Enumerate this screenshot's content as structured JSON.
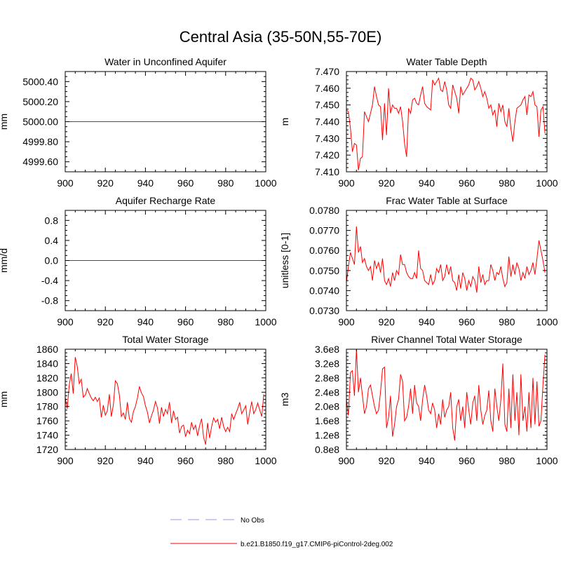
{
  "title": "Central Asia (35-50N,55-70E)",
  "legend": [
    {
      "label": "No Obs",
      "color": "#9999e6",
      "style": "dashed"
    },
    {
      "label": "b.e21.B1850.f19_g17.CMIP6-piControl-2deg.002",
      "color": "#ff0000",
      "style": "solid"
    }
  ],
  "chart_data": [
    {
      "type": "line",
      "title": "Water in Unconfined Aquifer",
      "ylabel": "mm",
      "xlim": [
        900,
        1000
      ],
      "ylim": [
        4999.5,
        5000.5
      ],
      "xticks": [
        900,
        920,
        940,
        960,
        980,
        1000
      ],
      "yticks": [
        4999.6,
        4999.8,
        5000.0,
        5000.2,
        5000.4
      ],
      "yticklabels": [
        "4999.60",
        "4999.80",
        "5000.00",
        "5000.20",
        "5000.40"
      ],
      "x_start": 900,
      "x_step": 1,
      "series": [
        {
          "color": "#ff0000",
          "values": [
            5000,
            5000,
            5000,
            5000,
            5000,
            5000,
            5000,
            5000,
            5000,
            5000,
            5000,
            5000,
            5000,
            5000,
            5000,
            5000,
            5000,
            5000,
            5000,
            5000,
            5000,
            5000,
            5000,
            5000,
            5000,
            5000,
            5000,
            5000,
            5000,
            5000,
            5000,
            5000,
            5000,
            5000,
            5000,
            5000,
            5000,
            5000,
            5000,
            5000,
            5000,
            5000,
            5000,
            5000,
            5000,
            5000,
            5000,
            5000,
            5000,
            5000,
            5000,
            5000,
            5000,
            5000,
            5000,
            5000,
            5000,
            5000,
            5000,
            5000,
            5000,
            5000,
            5000,
            5000,
            5000,
            5000,
            5000,
            5000,
            5000,
            5000,
            5000,
            5000,
            5000,
            5000,
            5000,
            5000,
            5000,
            5000,
            5000,
            5000,
            5000,
            5000,
            5000,
            5000,
            5000,
            5000,
            5000,
            5000,
            5000,
            5000,
            5000,
            5000,
            5000,
            5000,
            5000,
            5000,
            5000,
            5000,
            5000,
            5000
          ]
        }
      ]
    },
    {
      "type": "line",
      "title": "Water Table Depth",
      "ylabel": "m",
      "xlim": [
        900,
        1000
      ],
      "ylim": [
        7.41,
        7.47
      ],
      "xticks": [
        900,
        920,
        940,
        960,
        980,
        1000
      ],
      "yticks": [
        7.41,
        7.42,
        7.43,
        7.44,
        7.45,
        7.46,
        7.47
      ],
      "yticklabels": [
        "7.410",
        "7.420",
        "7.430",
        "7.440",
        "7.450",
        "7.460",
        "7.470"
      ],
      "x_start": 900,
      "x_step": 1,
      "series": [
        {
          "color": "#ff0000",
          "values": [
            7.447,
            7.446,
            7.436,
            7.422,
            7.427,
            7.426,
            7.411,
            7.418,
            7.419,
            7.446,
            7.443,
            7.44,
            7.445,
            7.45,
            7.461,
            7.455,
            7.45,
            7.449,
            7.429,
            7.451,
            7.432,
            7.46,
            7.445,
            7.45,
            7.448,
            7.448,
            7.445,
            7.449,
            7.44,
            7.427,
            7.419,
            7.448,
            7.445,
            7.453,
            7.454,
            7.451,
            7.45,
            7.456,
            7.461,
            7.451,
            7.449,
            7.448,
            7.447,
            7.465,
            7.462,
            7.464,
            7.466,
            7.459,
            7.458,
            7.464,
            7.459,
            7.45,
            7.448,
            7.462,
            7.458,
            7.454,
            7.445,
            7.461,
            7.456,
            7.458,
            7.46,
            7.462,
            7.466,
            7.465,
            7.459,
            7.461,
            7.464,
            7.46,
            7.455,
            7.458,
            7.454,
            7.448,
            7.45,
            7.444,
            7.447,
            7.437,
            7.451,
            7.446,
            7.45,
            7.44,
            7.437,
            7.448,
            7.436,
            7.428,
            7.44,
            7.448,
            7.449,
            7.45,
            7.453,
            7.455,
            7.444,
            7.456,
            7.455,
            7.458,
            7.45,
            7.449,
            7.431,
            7.447,
            7.449,
            7.433
          ]
        }
      ]
    },
    {
      "type": "line",
      "title": "Aquifer Recharge Rate",
      "ylabel": "mm/d",
      "xlim": [
        900,
        1000
      ],
      "ylim": [
        -1.0,
        1.0
      ],
      "xticks": [
        900,
        920,
        940,
        960,
        980,
        1000
      ],
      "yticks": [
        -0.8,
        -0.4,
        0.0,
        0.4,
        0.8
      ],
      "yticklabels": [
        "-0.8",
        "-0.4",
        "0.0",
        "0.4",
        "0.8"
      ],
      "x_start": 900,
      "x_step": 1,
      "series": [
        {
          "color": "#ff0000",
          "values": [
            0,
            0,
            0,
            0,
            0,
            0,
            0,
            0,
            0,
            0,
            0,
            0,
            0,
            0,
            0,
            0,
            0,
            0,
            0,
            0,
            0,
            0,
            0,
            0,
            0,
            0,
            0,
            0,
            0,
            0,
            0,
            0,
            0,
            0,
            0,
            0,
            0,
            0,
            0,
            0,
            0,
            0,
            0,
            0,
            0,
            0,
            0,
            0,
            0,
            0,
            0,
            0,
            0,
            0,
            0,
            0,
            0,
            0,
            0,
            0,
            0,
            0,
            0,
            0,
            0,
            0,
            0,
            0,
            0,
            0,
            0,
            0,
            0,
            0,
            0,
            0,
            0,
            0,
            0,
            0,
            0,
            0,
            0,
            0,
            0,
            0,
            0,
            0,
            0,
            0,
            0,
            0,
            0,
            0,
            0,
            0,
            0,
            0,
            0,
            0
          ]
        }
      ]
    },
    {
      "type": "line",
      "title": "Frac Water Table at Surface",
      "ylabel": "unitless [0-1]",
      "xlim": [
        900,
        1000
      ],
      "ylim": [
        0.073,
        0.078
      ],
      "xticks": [
        900,
        920,
        940,
        960,
        980,
        1000
      ],
      "yticks": [
        0.073,
        0.074,
        0.075,
        0.076,
        0.077,
        0.078
      ],
      "yticklabels": [
        "0.0730",
        "0.0740",
        "0.0750",
        "0.0760",
        "0.0770",
        "0.0780"
      ],
      "x_start": 900,
      "x_step": 1,
      "series": [
        {
          "color": "#ff0000",
          "values": [
            0.0744,
            0.0752,
            0.0759,
            0.0756,
            0.0753,
            0.0772,
            0.0759,
            0.0762,
            0.0754,
            0.0756,
            0.0752,
            0.075,
            0.0752,
            0.0745,
            0.0755,
            0.0751,
            0.0754,
            0.0749,
            0.0756,
            0.0745,
            0.0743,
            0.0746,
            0.0742,
            0.0749,
            0.0745,
            0.075,
            0.0748,
            0.0758,
            0.0753,
            0.0753,
            0.0749,
            0.0747,
            0.0746,
            0.0746,
            0.0749,
            0.0746,
            0.076,
            0.0751,
            0.075,
            0.0745,
            0.0744,
            0.0743,
            0.0748,
            0.0743,
            0.0745,
            0.0751,
            0.0749,
            0.0753,
            0.0745,
            0.0747,
            0.0753,
            0.0748,
            0.0752,
            0.0745,
            0.0744,
            0.074,
            0.0748,
            0.0741,
            0.0749,
            0.0746,
            0.074,
            0.0745,
            0.0742,
            0.0747,
            0.0745,
            0.0739,
            0.0752,
            0.0744,
            0.0748,
            0.0743,
            0.0745,
            0.0745,
            0.0753,
            0.075,
            0.0745,
            0.0749,
            0.0748,
            0.0752,
            0.0746,
            0.0742,
            0.0744,
            0.0757,
            0.0747,
            0.0753,
            0.0748,
            0.0754,
            0.0751,
            0.0745,
            0.0749,
            0.0746,
            0.0752,
            0.0748,
            0.075,
            0.0754,
            0.0748,
            0.0756,
            0.0765,
            0.076,
            0.0755,
            0.0749
          ]
        }
      ]
    },
    {
      "type": "line",
      "title": "Total Water Storage",
      "ylabel": "mm",
      "xlim": [
        900,
        1000
      ],
      "ylim": [
        1720,
        1860
      ],
      "xticks": [
        900,
        920,
        940,
        960,
        980,
        1000
      ],
      "yticks": [
        1720,
        1740,
        1760,
        1780,
        1800,
        1820,
        1840,
        1860
      ],
      "yticklabels": [
        "1720",
        "1740",
        "1760",
        "1780",
        "1800",
        "1820",
        "1840",
        "1860"
      ],
      "x_start": 900,
      "x_step": 1,
      "series": [
        {
          "color": "#ff0000",
          "values": [
            1793,
            1777,
            1810,
            1826,
            1798,
            1849,
            1836,
            1812,
            1818,
            1793,
            1796,
            1805,
            1798,
            1792,
            1788,
            1793,
            1787,
            1792,
            1765,
            1782,
            1768,
            1774,
            1797,
            1766,
            1782,
            1816,
            1812,
            1796,
            1766,
            1771,
            1762,
            1786,
            1763,
            1758,
            1773,
            1780,
            1792,
            1808,
            1799,
            1794,
            1781,
            1772,
            1757,
            1767,
            1775,
            1787,
            1778,
            1756,
            1779,
            1766,
            1776,
            1770,
            1786,
            1757,
            1774,
            1762,
            1765,
            1743,
            1752,
            1754,
            1738,
            1747,
            1742,
            1758,
            1748,
            1754,
            1739,
            1753,
            1763,
            1737,
            1727,
            1757,
            1736,
            1752,
            1764,
            1758,
            1762,
            1749,
            1765,
            1752,
            1745,
            1751,
            1745,
            1770,
            1762,
            1770,
            1777,
            1786,
            1770,
            1775,
            1781,
            1755,
            1772,
            1787,
            1770,
            1776,
            1785,
            1775,
            1766,
            1797
          ]
        }
      ]
    },
    {
      "type": "line",
      "title": "River Channel Total Water Storage",
      "ylabel": "m3",
      "xlim": [
        900,
        1000
      ],
      "ylim": [
        80000000.0,
        360000000.0
      ],
      "xticks": [
        900,
        920,
        940,
        960,
        980,
        1000
      ],
      "yticks": [
        80000000.0,
        120000000.0,
        160000000.0,
        200000000.0,
        240000000.0,
        280000000.0,
        320000000.0,
        360000000.0
      ],
      "yticklabels": [
        "0.8e8",
        "1.2e8",
        "1.6e8",
        "2.0e8",
        "2.4e8",
        "2.8e8",
        "3.2e8",
        "3.6e8"
      ],
      "x_start": 900,
      "x_step": 1,
      "series": [
        {
          "color": "#ff0000",
          "values": [
            220000000.0,
            175000000.0,
            295000000.0,
            300000000.0,
            230000000.0,
            360000000.0,
            240000000.0,
            280000000.0,
            230000000.0,
            180000000.0,
            200000000.0,
            250000000.0,
            260000000.0,
            230000000.0,
            200000000.0,
            180000000.0,
            190000000.0,
            240000000.0,
            305000000.0,
            310000000.0,
            140000000.0,
            170000000.0,
            230000000.0,
            116000000.0,
            150000000.0,
            200000000.0,
            220000000.0,
            290000000.0,
            270000000.0,
            160000000.0,
            170000000.0,
            200000000.0,
            250000000.0,
            180000000.0,
            260000000.0,
            210000000.0,
            200000000.0,
            160000000.0,
            220000000.0,
            260000000.0,
            230000000.0,
            190000000.0,
            180000000.0,
            210000000.0,
            190000000.0,
            140000000.0,
            180000000.0,
            150000000.0,
            220000000.0,
            170000000.0,
            190000000.0,
            200000000.0,
            240000000.0,
            140000000.0,
            105000000.0,
            200000000.0,
            220000000.0,
            160000000.0,
            200000000.0,
            140000000.0,
            240000000.0,
            190000000.0,
            150000000.0,
            210000000.0,
            230000000.0,
            160000000.0,
            260000000.0,
            190000000.0,
            150000000.0,
            175000000.0,
            190000000.0,
            245000000.0,
            160000000.0,
            130000000.0,
            250000000.0,
            200000000.0,
            160000000.0,
            220000000.0,
            320000000.0,
            150000000.0,
            130000000.0,
            250000000.0,
            140000000.0,
            290000000.0,
            160000000.0,
            240000000.0,
            120000000.0,
            290000000.0,
            160000000.0,
            200000000.0,
            130000000.0,
            240000000.0,
            140000000.0,
            280000000.0,
            150000000.0,
            270000000.0,
            145000000.0,
            160000000.0,
            260000000.0,
            345000000.0
          ]
        }
      ]
    }
  ]
}
